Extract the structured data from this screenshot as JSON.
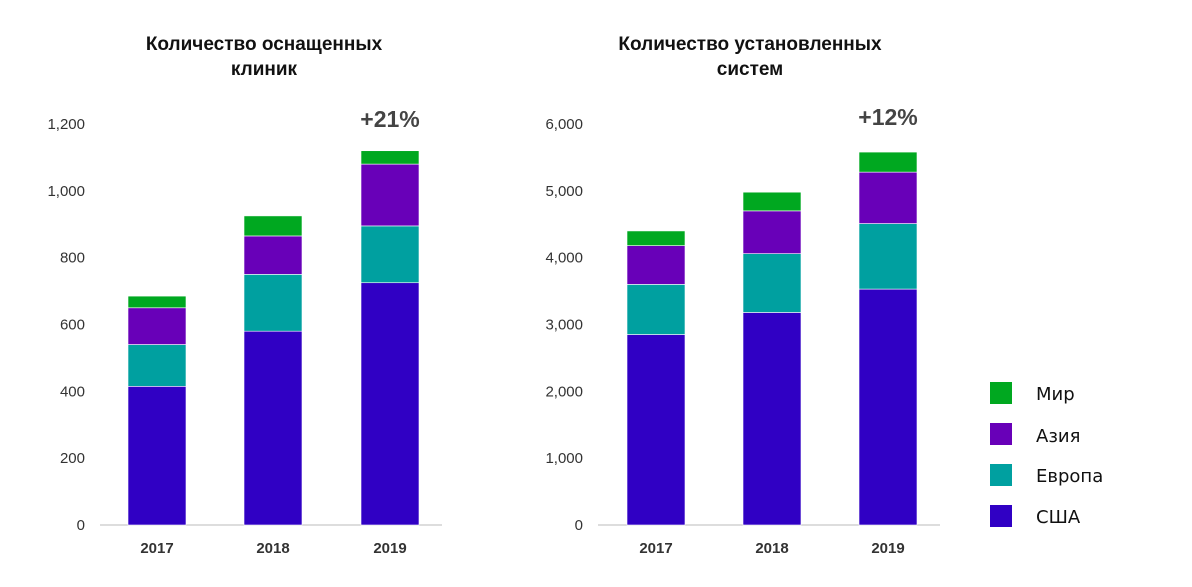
{
  "legend": [
    "Мир",
    "Азия",
    "Европа",
    "США"
  ],
  "colors": {
    "США": "#3000c4",
    "Европа": "#00a0a0",
    "Азия": "#6800b8",
    "Мир": "#00a820"
  },
  "chart_data": [
    {
      "type": "bar",
      "stacked": true,
      "title_lines": [
        "Количество оснащенных",
        "клиник"
      ],
      "categories": [
        "2017",
        "2018",
        "2019"
      ],
      "ylim": [
        0,
        1200
      ],
      "yticks": [
        "0",
        "200",
        "400",
        "600",
        "800",
        "1,000",
        "1,200"
      ],
      "yticks_values": [
        0,
        200,
        400,
        600,
        800,
        1000,
        1200
      ],
      "series": [
        {
          "name": "США",
          "values": [
            415,
            580,
            725
          ]
        },
        {
          "name": "Европа",
          "values": [
            125,
            170,
            170
          ]
        },
        {
          "name": "Азия",
          "values": [
            110,
            115,
            185
          ]
        },
        {
          "name": "Мир",
          "values": [
            35,
            60,
            40
          ]
        }
      ],
      "annotation": "+21%",
      "grid": false
    },
    {
      "type": "bar",
      "stacked": true,
      "title_lines": [
        "Количество установленных",
        "систем"
      ],
      "categories": [
        "2017",
        "2018",
        "2019"
      ],
      "ylim": [
        0,
        6000
      ],
      "yticks": [
        "0",
        "1,000",
        "2,000",
        "3,000",
        "4,000",
        "5,000",
        "6,000"
      ],
      "yticks_values": [
        0,
        1000,
        2000,
        3000,
        4000,
        5000,
        6000
      ],
      "series": [
        {
          "name": "США",
          "values": [
            2850,
            3180,
            3530
          ]
        },
        {
          "name": "Европа",
          "values": [
            750,
            880,
            980
          ]
        },
        {
          "name": "Азия",
          "values": [
            580,
            640,
            770
          ]
        },
        {
          "name": "Мир",
          "values": [
            220,
            280,
            300
          ]
        }
      ],
      "annotation": "+12%",
      "grid": false
    }
  ]
}
